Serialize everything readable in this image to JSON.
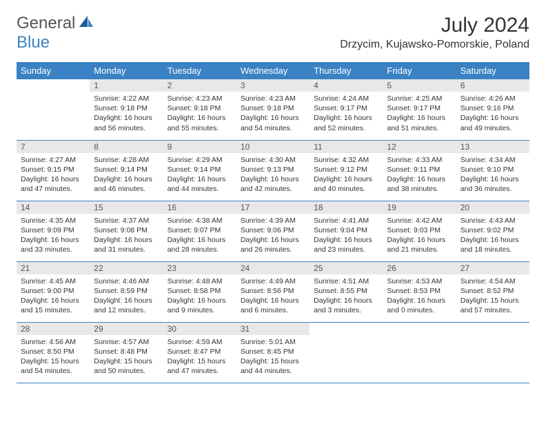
{
  "logo": {
    "text1": "General",
    "text2": "Blue"
  },
  "title": "July 2024",
  "location": "Drzycim, Kujawsko-Pomorskie, Poland",
  "colors": {
    "header_bg": "#3b82c4",
    "header_text": "#ffffff",
    "daynum_bg": "#e8e8e8",
    "border": "#3b82c4",
    "logo_gray": "#555555",
    "logo_blue": "#3b82c4"
  },
  "dayHeaders": [
    "Sunday",
    "Monday",
    "Tuesday",
    "Wednesday",
    "Thursday",
    "Friday",
    "Saturday"
  ],
  "weeks": [
    [
      {
        "empty": true
      },
      {
        "num": "1",
        "sunrise": "4:22 AM",
        "sunset": "9:18 PM",
        "daylight": "16 hours and 56 minutes."
      },
      {
        "num": "2",
        "sunrise": "4:23 AM",
        "sunset": "9:18 PM",
        "daylight": "16 hours and 55 minutes."
      },
      {
        "num": "3",
        "sunrise": "4:23 AM",
        "sunset": "9:18 PM",
        "daylight": "16 hours and 54 minutes."
      },
      {
        "num": "4",
        "sunrise": "4:24 AM",
        "sunset": "9:17 PM",
        "daylight": "16 hours and 52 minutes."
      },
      {
        "num": "5",
        "sunrise": "4:25 AM",
        "sunset": "9:17 PM",
        "daylight": "16 hours and 51 minutes."
      },
      {
        "num": "6",
        "sunrise": "4:26 AM",
        "sunset": "9:16 PM",
        "daylight": "16 hours and 49 minutes."
      }
    ],
    [
      {
        "num": "7",
        "sunrise": "4:27 AM",
        "sunset": "9:15 PM",
        "daylight": "16 hours and 47 minutes."
      },
      {
        "num": "8",
        "sunrise": "4:28 AM",
        "sunset": "9:14 PM",
        "daylight": "16 hours and 46 minutes."
      },
      {
        "num": "9",
        "sunrise": "4:29 AM",
        "sunset": "9:14 PM",
        "daylight": "16 hours and 44 minutes."
      },
      {
        "num": "10",
        "sunrise": "4:30 AM",
        "sunset": "9:13 PM",
        "daylight": "16 hours and 42 minutes."
      },
      {
        "num": "11",
        "sunrise": "4:32 AM",
        "sunset": "9:12 PM",
        "daylight": "16 hours and 40 minutes."
      },
      {
        "num": "12",
        "sunrise": "4:33 AM",
        "sunset": "9:11 PM",
        "daylight": "16 hours and 38 minutes."
      },
      {
        "num": "13",
        "sunrise": "4:34 AM",
        "sunset": "9:10 PM",
        "daylight": "16 hours and 36 minutes."
      }
    ],
    [
      {
        "num": "14",
        "sunrise": "4:35 AM",
        "sunset": "9:09 PM",
        "daylight": "16 hours and 33 minutes."
      },
      {
        "num": "15",
        "sunrise": "4:37 AM",
        "sunset": "9:08 PM",
        "daylight": "16 hours and 31 minutes."
      },
      {
        "num": "16",
        "sunrise": "4:38 AM",
        "sunset": "9:07 PM",
        "daylight": "16 hours and 28 minutes."
      },
      {
        "num": "17",
        "sunrise": "4:39 AM",
        "sunset": "9:06 PM",
        "daylight": "16 hours and 26 minutes."
      },
      {
        "num": "18",
        "sunrise": "4:41 AM",
        "sunset": "9:04 PM",
        "daylight": "16 hours and 23 minutes."
      },
      {
        "num": "19",
        "sunrise": "4:42 AM",
        "sunset": "9:03 PM",
        "daylight": "16 hours and 21 minutes."
      },
      {
        "num": "20",
        "sunrise": "4:43 AM",
        "sunset": "9:02 PM",
        "daylight": "16 hours and 18 minutes."
      }
    ],
    [
      {
        "num": "21",
        "sunrise": "4:45 AM",
        "sunset": "9:00 PM",
        "daylight": "16 hours and 15 minutes."
      },
      {
        "num": "22",
        "sunrise": "4:46 AM",
        "sunset": "8:59 PM",
        "daylight": "16 hours and 12 minutes."
      },
      {
        "num": "23",
        "sunrise": "4:48 AM",
        "sunset": "8:58 PM",
        "daylight": "16 hours and 9 minutes."
      },
      {
        "num": "24",
        "sunrise": "4:49 AM",
        "sunset": "8:56 PM",
        "daylight": "16 hours and 6 minutes."
      },
      {
        "num": "25",
        "sunrise": "4:51 AM",
        "sunset": "8:55 PM",
        "daylight": "16 hours and 3 minutes."
      },
      {
        "num": "26",
        "sunrise": "4:53 AM",
        "sunset": "8:53 PM",
        "daylight": "16 hours and 0 minutes."
      },
      {
        "num": "27",
        "sunrise": "4:54 AM",
        "sunset": "8:52 PM",
        "daylight": "15 hours and 57 minutes."
      }
    ],
    [
      {
        "num": "28",
        "sunrise": "4:56 AM",
        "sunset": "8:50 PM",
        "daylight": "15 hours and 54 minutes."
      },
      {
        "num": "29",
        "sunrise": "4:57 AM",
        "sunset": "8:48 PM",
        "daylight": "15 hours and 50 minutes."
      },
      {
        "num": "30",
        "sunrise": "4:59 AM",
        "sunset": "8:47 PM",
        "daylight": "15 hours and 47 minutes."
      },
      {
        "num": "31",
        "sunrise": "5:01 AM",
        "sunset": "8:45 PM",
        "daylight": "15 hours and 44 minutes."
      },
      {
        "empty": true
      },
      {
        "empty": true
      },
      {
        "empty": true
      }
    ]
  ],
  "labels": {
    "sunrise": "Sunrise:",
    "sunset": "Sunset:",
    "daylight": "Daylight:"
  }
}
